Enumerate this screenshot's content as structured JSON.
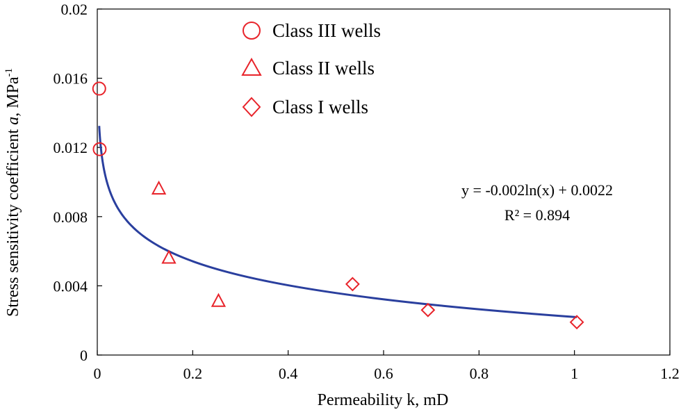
{
  "chart_data": {
    "type": "scatter",
    "title": "",
    "xlabel": "Permeability k, mD",
    "ylabel_main": "Stress sensitivity coefficient ",
    "ylabel_var": "a",
    "ylabel_unit": ", MPa",
    "ylabel_sup": "-1",
    "xlim": [
      0,
      1.2
    ],
    "ylim": [
      0,
      0.02
    ],
    "x_ticks": [
      0,
      0.2,
      0.4,
      0.6,
      0.8,
      1,
      1.2
    ],
    "x_tick_labels": [
      "0",
      "0.2",
      "0.4",
      "0.6",
      "0.8",
      "1",
      "1.2"
    ],
    "y_ticks": [
      0,
      0.004,
      0.008,
      0.012,
      0.016,
      0.02
    ],
    "y_tick_labels": [
      "0",
      "0.004",
      "0.008",
      "0.012",
      "0.016",
      "0.02"
    ],
    "series": [
      {
        "name": "Class III wells",
        "marker": "circle",
        "color": "#e8232a",
        "points": [
          {
            "x": 0.004,
            "y": 0.0154
          },
          {
            "x": 0.005,
            "y": 0.0119
          }
        ]
      },
      {
        "name": "Class II wells",
        "marker": "triangle",
        "color": "#e8232a",
        "points": [
          {
            "x": 0.129,
            "y": 0.0096
          },
          {
            "x": 0.15,
            "y": 0.0056
          },
          {
            "x": 0.254,
            "y": 0.0031
          }
        ]
      },
      {
        "name": "Class I wells",
        "marker": "diamond",
        "color": "#e8232a",
        "points": [
          {
            "x": 0.535,
            "y": 0.0041
          },
          {
            "x": 0.693,
            "y": 0.0026
          },
          {
            "x": 1.005,
            "y": 0.0019
          }
        ]
      }
    ],
    "trendline": {
      "type": "logarithmic",
      "a": -0.002,
      "b": 0.0022,
      "x_range": [
        0.004,
        1.005
      ],
      "color": "#2a3f9e",
      "equation": "y = -0.002ln(x) + 0.0022",
      "r2_label": "R² = 0.894"
    }
  }
}
